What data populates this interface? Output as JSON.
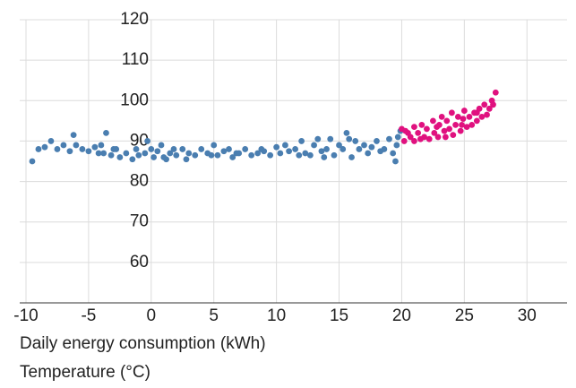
{
  "chart_data": {
    "type": "scatter",
    "xlabel": "Daily energy consumption (kWh)",
    "ylabel": "Temperature (°C)",
    "xlim": [
      -10.5,
      33.2
    ],
    "ylim": [
      50,
      120
    ],
    "xticks": [
      -10,
      -5,
      0,
      5,
      10,
      15,
      20,
      25,
      30
    ],
    "yticks": [
      60,
      70,
      80,
      90,
      100,
      110,
      120
    ],
    "grid": true,
    "series": [
      {
        "color": "#4a7eb0",
        "x": [
          -9.5,
          -9,
          -8.5,
          -8,
          -7.5,
          -7,
          -6.5,
          -6.2,
          -6,
          -5.5,
          -5,
          -4.5,
          -4,
          -3.8,
          -3.6,
          -3.2,
          -3,
          -2.5,
          -2,
          -1.5,
          -1.2,
          -1,
          -0.5,
          -0.3,
          0,
          0.2,
          0.5,
          0.8,
          1,
          1.2,
          1.5,
          1.8,
          2,
          2.5,
          3,
          3.5,
          4,
          4.5,
          5,
          5.3,
          5.8,
          6.2,
          6.5,
          7,
          7.5,
          8,
          8.5,
          9,
          9.5,
          10,
          10.3,
          10.7,
          11,
          11.5,
          12,
          12.3,
          12.7,
          13,
          13.3,
          13.6,
          14,
          14.3,
          14.6,
          15,
          15.3,
          15.6,
          16,
          16.3,
          16.6,
          17,
          17.3,
          17.6,
          18,
          18.3,
          18.6,
          19,
          19.3,
          19.5,
          19.7,
          19.9,
          19.6,
          15.8,
          13.8,
          11.8,
          8.8,
          6.8,
          4.8,
          2.8,
          -2.8,
          -4.2
        ],
        "values": [
          85,
          88,
          88.5,
          90,
          88,
          89,
          87.5,
          91.5,
          89,
          88,
          87.5,
          88.5,
          89,
          87,
          92,
          86.5,
          88,
          86,
          87,
          85.5,
          88,
          86.5,
          87,
          90,
          88,
          86,
          87.5,
          89,
          86,
          85.5,
          87,
          88,
          86.5,
          88,
          87,
          86.5,
          88,
          87,
          89,
          86.5,
          87.5,
          88,
          86,
          87,
          88,
          86.5,
          87,
          87.5,
          86.5,
          88.5,
          87,
          89,
          87.5,
          88,
          90,
          87,
          86.5,
          89,
          90.5,
          87.5,
          88,
          90.5,
          86.5,
          89,
          88,
          92,
          86,
          90,
          88,
          89,
          87,
          88.5,
          90,
          87.5,
          88,
          90.5,
          87,
          85,
          91,
          92.5,
          89,
          90.5,
          86,
          86.5,
          88,
          87,
          86.5,
          85.5,
          88,
          87
        ]
      },
      {
        "color": "#e0117f",
        "x": [
          20,
          20.2,
          20.5,
          20.7,
          21,
          21,
          21.3,
          21.6,
          21.8,
          22,
          22.2,
          22.5,
          22.6,
          22.9,
          23,
          23.2,
          23.4,
          23.6,
          23.8,
          24,
          24.1,
          24.3,
          24.5,
          24.7,
          24.9,
          25,
          25.2,
          25.4,
          25.6,
          25.8,
          26,
          26.2,
          26.4,
          26.6,
          26.8,
          27,
          27.2,
          27.3,
          27.5,
          20.3,
          21.5,
          22.8,
          23.5,
          24.8,
          26
        ],
        "values": [
          93,
          90,
          92,
          91,
          93.5,
          90,
          92,
          94,
          91,
          93,
          90.5,
          95,
          92,
          91,
          94,
          96,
          92.5,
          95,
          93,
          97,
          91.5,
          94,
          96,
          92.5,
          95.5,
          97.5,
          93.5,
          96,
          94,
          97,
          95,
          98,
          96,
          99,
          96.5,
          98,
          100,
          99,
          102,
          92.5,
          90.5,
          93.5,
          91,
          94,
          97
        ]
      }
    ]
  }
}
